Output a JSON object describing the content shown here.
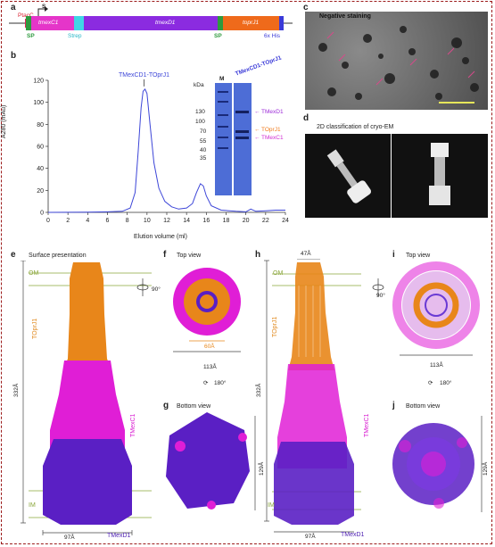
{
  "panels": {
    "a": "a",
    "b": "b",
    "c": "c",
    "d": "d",
    "e": "e",
    "f": "f",
    "g": "g",
    "h": "h",
    "i": "i",
    "j": "j"
  },
  "construct": {
    "promoter": "PtacC",
    "sd": "S",
    "genes": [
      "tmexC1",
      "tmexD1",
      "toprJ1"
    ],
    "sp_left": "SP",
    "spacer": "Strep",
    "sp_right": "SP",
    "his": "6x His",
    "colors": {
      "tmexC1": "#e535c9",
      "tmexD1": "#8b2be0",
      "toprJ1": "#ef6a1b",
      "sp": "#2e9a3e",
      "spacer": "#3fd6e6"
    }
  },
  "chart_data": {
    "type": "line",
    "title": "",
    "xlabel": "Elution volume (ml)",
    "ylabel": "A280 (mAu)",
    "xlim": [
      0,
      24
    ],
    "ylim": [
      0,
      120
    ],
    "xticks": [
      0,
      2,
      4,
      6,
      8,
      10,
      12,
      14,
      16,
      18,
      20,
      22,
      24
    ],
    "yticks": [
      0,
      20,
      40,
      60,
      80,
      100,
      120
    ],
    "series": [
      {
        "name": "",
        "color": "#3d46d8",
        "x": [
          0,
          4,
          6,
          7.5,
          8.3,
          8.8,
          9.1,
          9.4,
          9.6,
          9.8,
          10.0,
          10.3,
          10.7,
          11.2,
          11.8,
          12.5,
          13.2,
          14.0,
          14.6,
          15.0,
          15.4,
          15.7,
          16.0,
          16.5,
          17.5,
          19,
          20,
          20.5,
          21,
          22,
          23,
          24
        ],
        "y": [
          0,
          0.2,
          0.5,
          1,
          4,
          18,
          55,
          95,
          110,
          112,
          108,
          80,
          45,
          22,
          10,
          5,
          3,
          4,
          8,
          18,
          26,
          24,
          15,
          6,
          2,
          1,
          0.5,
          3,
          1,
          1.5,
          2,
          2
        ]
      }
    ],
    "annotations": [
      {
        "text": "TMexCD1-TOprJ1",
        "x": 9.7,
        "y": 112
      }
    ],
    "grid": false
  },
  "gel": {
    "kda": "kDa",
    "header_m": "M",
    "header_sample": "TMexCD1-TOprJ1",
    "markers": [
      "130",
      "100",
      "70",
      "55",
      "40",
      "35"
    ],
    "band_labels": [
      {
        "text": "TMexD1",
        "color": "#9c2bd8"
      },
      {
        "text": "TOprJ1",
        "color": "#ef7a1b"
      },
      {
        "text": "TMexC1",
        "color": "#d02bd0"
      }
    ]
  },
  "c": {
    "title": "Negative staining"
  },
  "d": {
    "title": "2D classification of cryo-EM"
  },
  "e": {
    "title": "Surface presentation",
    "om": "OM",
    "im": "IM",
    "height": "332Å",
    "width": "97Å",
    "toprj1": "TOprJ1",
    "tmexc1": "TMexC1",
    "tmexd1": "TMexD1"
  },
  "f": {
    "title": "Top view",
    "inner": "60Å",
    "outer": "113Å",
    "rot1": "90°",
    "rot2": "180°"
  },
  "g": {
    "title": "Bottom view",
    "height": "129Å"
  },
  "h": {
    "top": "47Å",
    "om": "OM",
    "im": "IM",
    "height": "332Å",
    "width": "97Å",
    "toprj1": "TOprJ1",
    "tmexc1": "TMexC1",
    "tmexd1": "TMexD1"
  },
  "i": {
    "title": "Top view",
    "outer": "113Å",
    "rot1": "90°",
    "rot2": "180°"
  },
  "j": {
    "title": "Bottom view",
    "height": "129Å"
  },
  "colors": {
    "orange": "#e8861a",
    "magenta": "#e01ed6",
    "purple": "#5a1fc4",
    "label_orange": "#e0881c",
    "label_magenta": "#d81ad0",
    "label_purple": "#4a1bb0",
    "membrane": "#8aa63a"
  }
}
